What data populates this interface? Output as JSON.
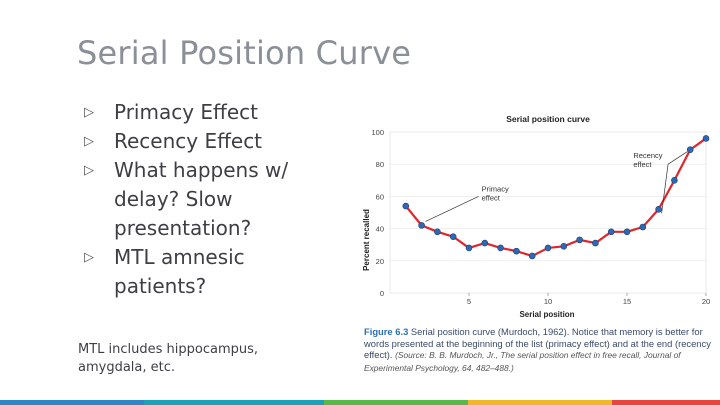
{
  "slide": {
    "title": "Serial Position Curve",
    "bullets": [
      {
        "text": "Primacy Effect"
      },
      {
        "text": "Recency Effect"
      },
      {
        "text": "What happens w/ delay? Slow presentation?"
      },
      {
        "text": "MTL amnesic patients?"
      }
    ],
    "bullet_marker": "▷",
    "note": "MTL includes hippocampus, amygdala, etc."
  },
  "figure": {
    "caption_label": "Figure 6.3",
    "caption_text": " Serial position curve (Murdoch, 1962). Notice that memory is better for words presented at the beginning of the list (primacy effect) and at the end (recency effect). ",
    "caption_source": "(Source: B. B. Murdoch, Jr., The serial position effect in free recall, Journal of Experimental Psychology, 64, 482–488.)"
  },
  "chart_data": {
    "type": "line",
    "title": "Serial position curve",
    "xlabel": "Serial position",
    "ylabel": "Percent recalled",
    "xlim": [
      0,
      20
    ],
    "ylim": [
      0,
      100
    ],
    "xticks": [
      5,
      10,
      15,
      20
    ],
    "yticks": [
      0,
      20,
      40,
      60,
      80,
      100
    ],
    "x": [
      1,
      2,
      3,
      4,
      5,
      6,
      7,
      8,
      9,
      10,
      11,
      12,
      13,
      14,
      15,
      16,
      17,
      18,
      19,
      20
    ],
    "values": [
      54,
      42,
      38,
      35,
      28,
      31,
      28,
      26,
      23,
      28,
      29,
      33,
      31,
      38,
      38,
      41,
      52,
      70,
      89,
      96
    ],
    "annotations": [
      {
        "label": "Primacy effect",
        "lines": [
          "Primacy",
          "effect"
        ]
      },
      {
        "label": "Recency effect",
        "lines": [
          "Recency",
          "effect"
        ]
      }
    ],
    "colors": {
      "line": "#e0262c",
      "point": "#2f67b1",
      "axis": "#555555"
    }
  },
  "theme": {
    "bar_colors": [
      "#2d86c6",
      "#1aa3b8",
      "#57b947",
      "#f0b72b",
      "#e8453c"
    ]
  }
}
